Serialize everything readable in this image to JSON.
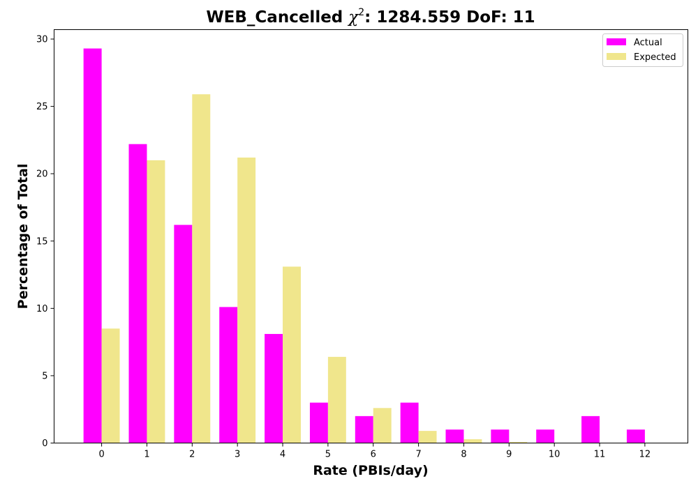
{
  "chart_data": {
    "type": "bar",
    "title_prefix": "WEB_Cancelled ",
    "title_symbol": "χ",
    "title_superscript": "2",
    "title_suffix": ": 1284.559 DoF: 11",
    "xlabel": "Rate (PBIs/day)",
    "ylabel": "Percentage of Total",
    "categories": [
      "0",
      "1",
      "2",
      "3",
      "4",
      "5",
      "6",
      "7",
      "8",
      "9",
      "10",
      "11",
      "12"
    ],
    "series": [
      {
        "name": "Actual",
        "color": "#ff00ff",
        "values": [
          29.3,
          22.2,
          16.2,
          10.1,
          8.1,
          3.0,
          2.0,
          3.0,
          1.0,
          1.0,
          1.0,
          2.0,
          1.0
        ]
      },
      {
        "name": "Expected",
        "color": "#f0e68c",
        "values": [
          8.5,
          21.0,
          25.9,
          21.2,
          13.1,
          6.4,
          2.6,
          0.9,
          0.28,
          0.08,
          0.02,
          0,
          0
        ]
      }
    ],
    "ylim": [
      0,
      30.7
    ],
    "yticks": [
      0,
      5,
      10,
      15,
      20,
      25,
      30
    ],
    "xlim": [
      -1.05,
      12.95
    ],
    "grid": false,
    "legend_position": "top-right"
  }
}
